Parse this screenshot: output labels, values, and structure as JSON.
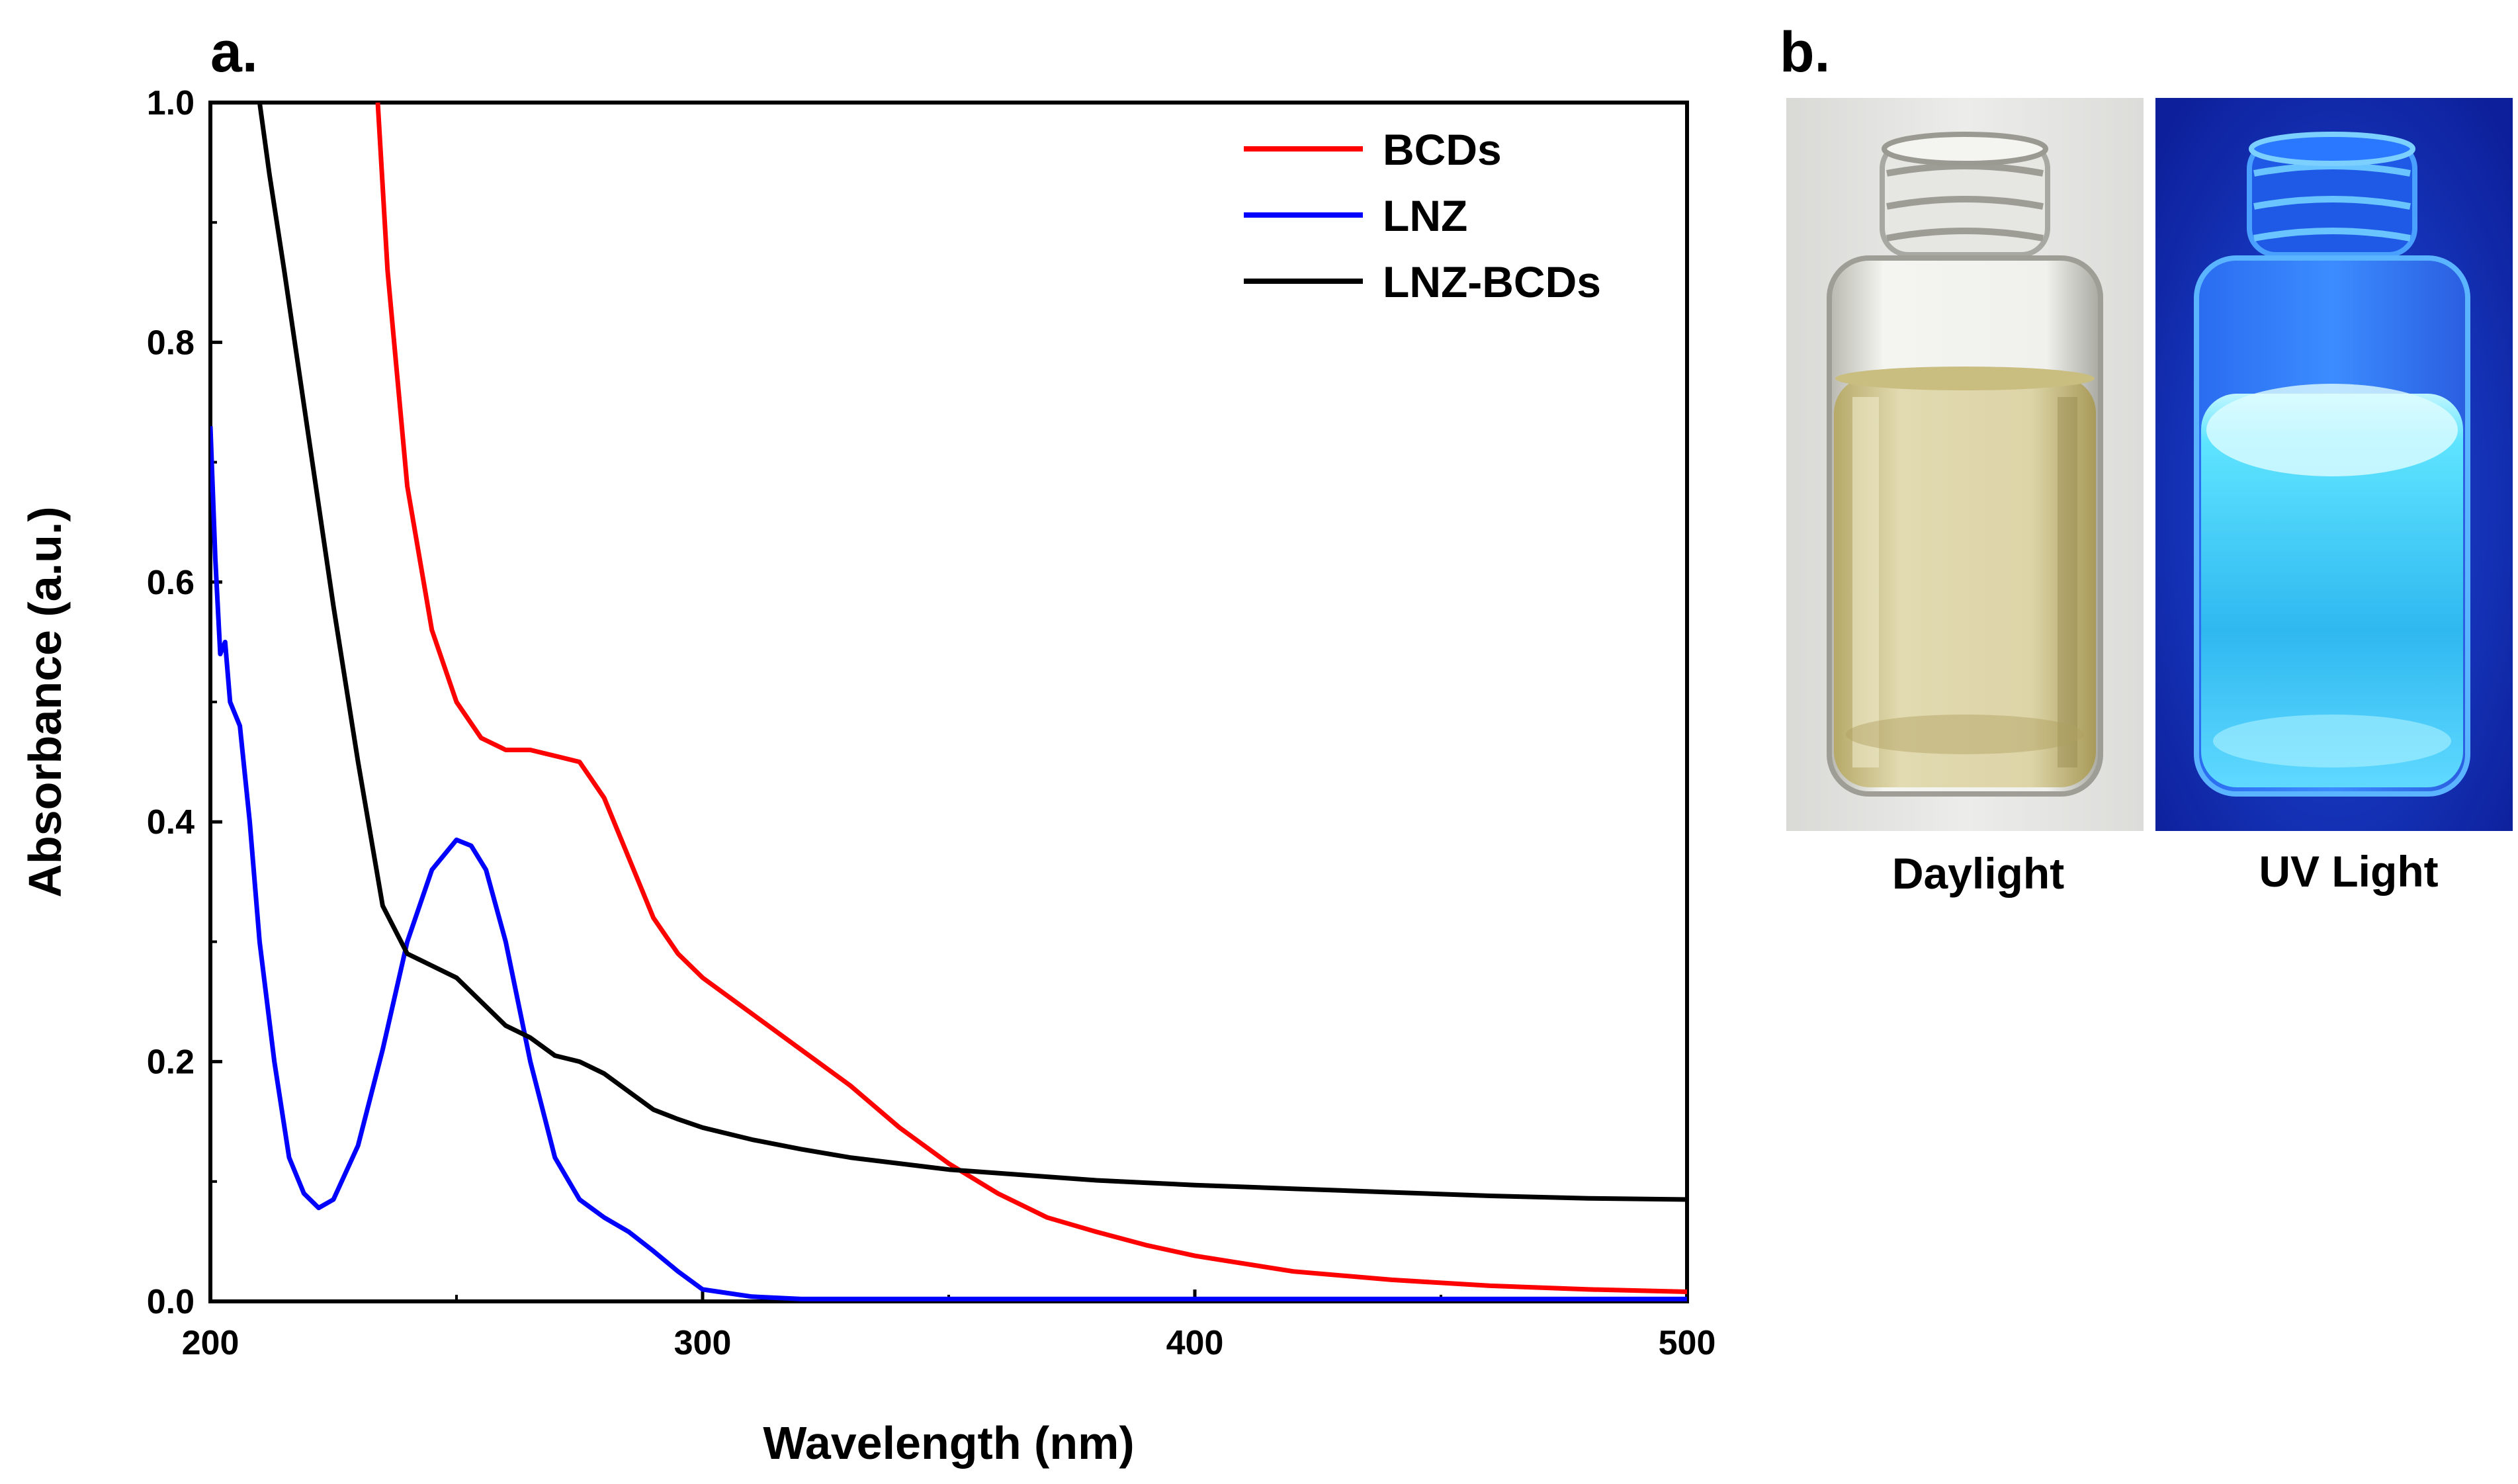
{
  "panels": {
    "a": "a.",
    "b": "b."
  },
  "chart_data": {
    "type": "line",
    "title": "",
    "xlabel": "Wavelength (nm)",
    "ylabel": "Absorbance (a.u.)",
    "xlim": [
      200,
      500
    ],
    "ylim": [
      0,
      1.0
    ],
    "xticks": [
      200,
      300,
      400,
      500
    ],
    "yticks": [
      0.0,
      0.2,
      0.4,
      0.6,
      0.8,
      1.0
    ],
    "xtick_labels": [
      "200",
      "300",
      "400",
      "500"
    ],
    "ytick_labels": [
      "0.0",
      "0.2",
      "0.4",
      "0.6",
      "0.8",
      "1.0"
    ],
    "grid": false,
    "legend_position": "top-right",
    "series": [
      {
        "name": "BCDs",
        "color": "#ff0000",
        "x": [
          234,
          236,
          240,
          245,
          250,
          255,
          260,
          265,
          270,
          275,
          280,
          285,
          290,
          295,
          300,
          310,
          320,
          330,
          340,
          350,
          360,
          370,
          380,
          390,
          400,
          420,
          440,
          460,
          480,
          500
        ],
        "y": [
          1.0,
          0.86,
          0.68,
          0.56,
          0.5,
          0.47,
          0.46,
          0.46,
          0.455,
          0.45,
          0.42,
          0.37,
          0.32,
          0.29,
          0.27,
          0.24,
          0.21,
          0.18,
          0.145,
          0.115,
          0.09,
          0.07,
          0.058,
          0.047,
          0.038,
          0.025,
          0.018,
          0.013,
          0.01,
          0.008
        ]
      },
      {
        "name": "LNZ",
        "color": "#0000ff",
        "x": [
          200,
          201,
          202,
          203,
          204,
          206,
          208,
          210,
          213,
          216,
          219,
          222,
          225,
          230,
          235,
          240,
          245,
          250,
          253,
          256,
          260,
          265,
          270,
          275,
          280,
          285,
          290,
          295,
          300,
          310,
          320,
          350,
          400,
          450,
          500
        ],
        "y": [
          0.73,
          0.62,
          0.54,
          0.55,
          0.5,
          0.48,
          0.4,
          0.3,
          0.2,
          0.12,
          0.09,
          0.078,
          0.085,
          0.13,
          0.21,
          0.3,
          0.36,
          0.385,
          0.38,
          0.36,
          0.3,
          0.2,
          0.12,
          0.085,
          0.07,
          0.058,
          0.042,
          0.025,
          0.01,
          0.004,
          0.002,
          0.002,
          0.002,
          0.002,
          0.002
        ]
      },
      {
        "name": "LNZ-BCDs",
        "color": "#000000",
        "x": [
          210,
          212,
          215,
          220,
          225,
          230,
          235,
          240,
          245,
          250,
          255,
          260,
          265,
          270,
          275,
          280,
          285,
          290,
          295,
          300,
          310,
          320,
          330,
          340,
          350,
          360,
          370,
          380,
          390,
          400,
          420,
          440,
          460,
          480,
          500
        ],
        "y": [
          1.0,
          0.94,
          0.86,
          0.72,
          0.58,
          0.45,
          0.33,
          0.29,
          0.28,
          0.27,
          0.25,
          0.23,
          0.22,
          0.205,
          0.2,
          0.19,
          0.175,
          0.16,
          0.152,
          0.145,
          0.135,
          0.127,
          0.12,
          0.115,
          0.11,
          0.107,
          0.104,
          0.101,
          0.099,
          0.097,
          0.094,
          0.091,
          0.088,
          0.086,
          0.085
        ]
      }
    ]
  },
  "photos": {
    "daylight": {
      "caption": "Daylight",
      "background": "#e8e8e6",
      "liquid": "#d6cfa0"
    },
    "uv": {
      "caption": "UV Light",
      "background": "#1432b8",
      "liquid": "#2fd6ff"
    }
  }
}
